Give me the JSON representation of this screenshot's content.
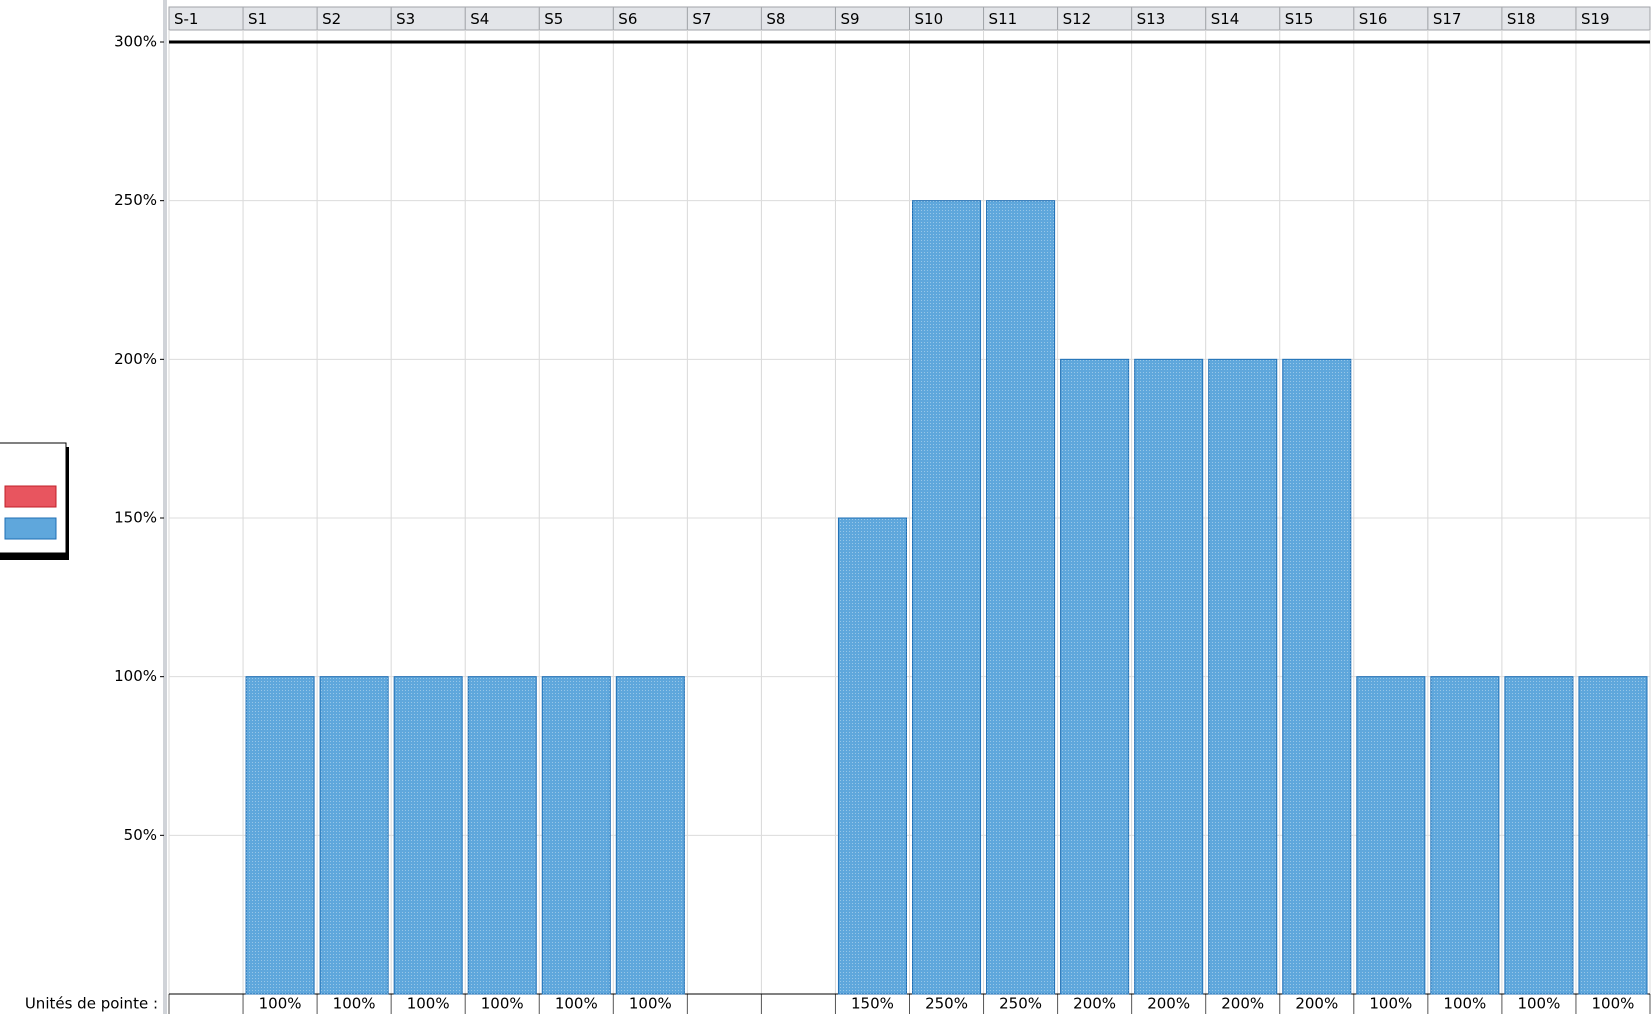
{
  "chart_data": {
    "type": "bar",
    "categories": [
      "S-1",
      "S1",
      "S2",
      "S3",
      "S4",
      "S5",
      "S6",
      "S7",
      "S8",
      "S9",
      "S10",
      "S11",
      "S12",
      "S13",
      "S14",
      "S15",
      "S16",
      "S17",
      "S18",
      "S19"
    ],
    "values": [
      null,
      100,
      100,
      100,
      100,
      100,
      100,
      null,
      null,
      150,
      250,
      250,
      200,
      200,
      200,
      200,
      100,
      100,
      100,
      100
    ],
    "value_labels": [
      null,
      "100%",
      "100%",
      "100%",
      "100%",
      "100%",
      "100%",
      null,
      null,
      "150%",
      "250%",
      "250%",
      "200%",
      "200%",
      "200%",
      "200%",
      "100%",
      "100%",
      "100%",
      "100%"
    ],
    "color": "#5fa7dc",
    "ylim": [
      0,
      300
    ],
    "yticks": [
      {
        "value": 50,
        "label": "50%"
      },
      {
        "value": 100,
        "label": "100%"
      },
      {
        "value": 150,
        "label": "150%"
      },
      {
        "value": 200,
        "label": "200%"
      },
      {
        "value": 250,
        "label": "250%"
      },
      {
        "value": 300,
        "label": "300%"
      }
    ],
    "grid": true,
    "row_label": "Unités de pointe :"
  }
}
